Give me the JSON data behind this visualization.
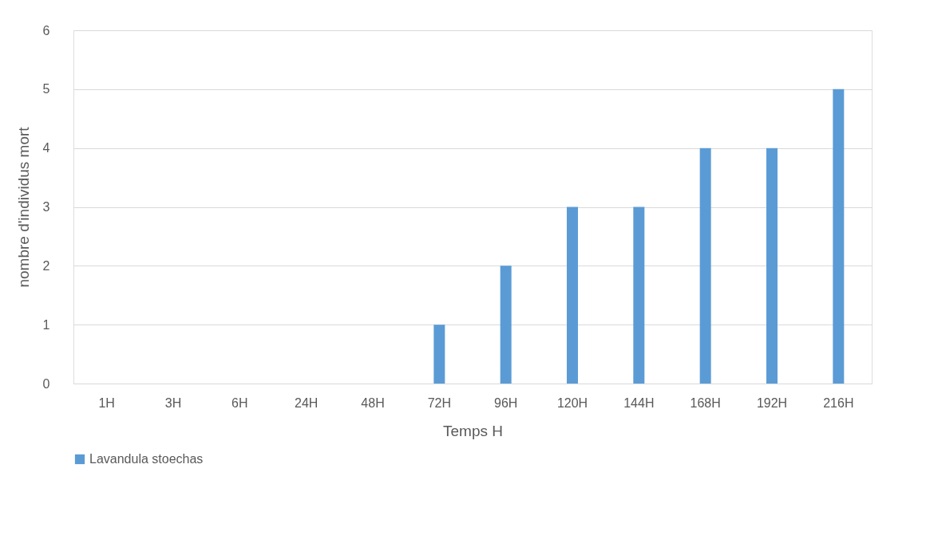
{
  "chart_data": {
    "type": "bar",
    "xlabel": "Temps H",
    "ylabel": "nombre d'individus mort",
    "categories": [
      "1H",
      "3H",
      "6H",
      "24H",
      "48H",
      "72H",
      "96H",
      "120H",
      "144H",
      "168H",
      "192H",
      "216H"
    ],
    "series": [
      {
        "name": "Lavandula stoechas",
        "color": "#5b9bd5",
        "values": [
          0,
          0,
          0,
          0,
          0,
          1,
          2,
          3,
          3,
          4,
          4,
          5
        ]
      }
    ],
    "ylim": [
      0,
      6
    ],
    "yticks": [
      0,
      1,
      2,
      3,
      4,
      5,
      6
    ],
    "grid": "y",
    "legend": "bottom"
  }
}
